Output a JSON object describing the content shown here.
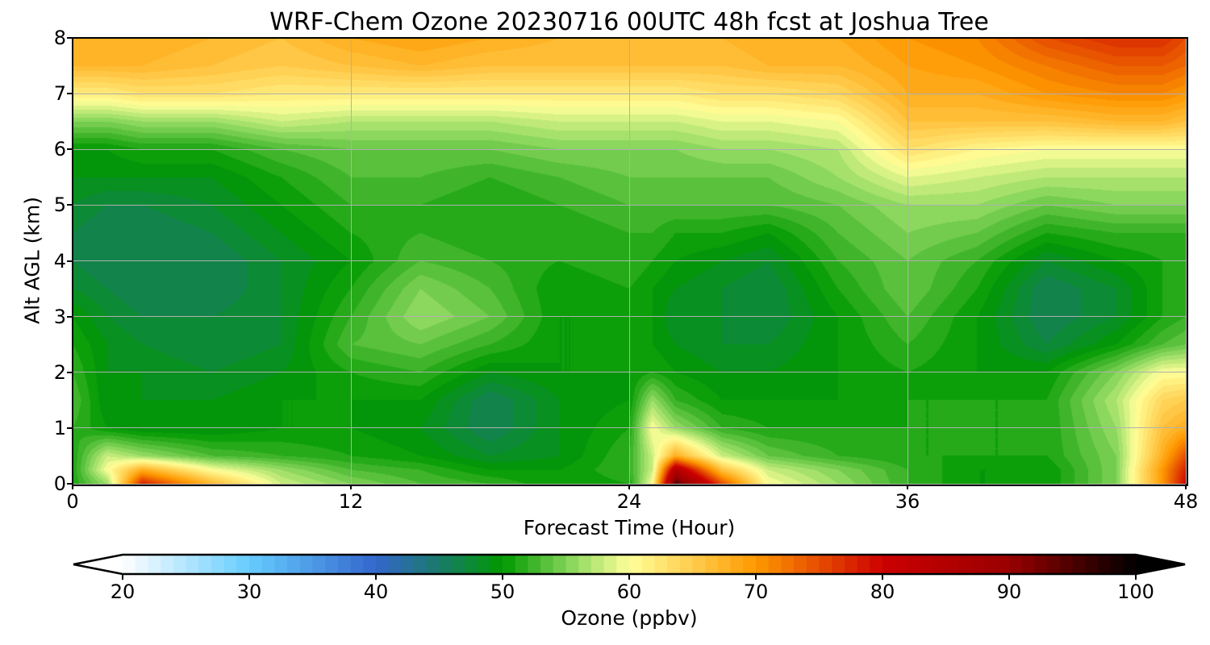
{
  "chart_data": {
    "type": "heatmap",
    "title": "WRF-Chem Ozone  20230716 00UTC 48h fcst at Joshua Tree",
    "xlabel": "Forecast Time (Hour)",
    "ylabel": "Alt AGL (km)",
    "xlim": [
      0,
      48
    ],
    "ylim": [
      0,
      8
    ],
    "xticks": [
      "0",
      "12",
      "24",
      "36",
      "48"
    ],
    "yticks": [
      "0",
      "1",
      "2",
      "3",
      "4",
      "5",
      "6",
      "7",
      "8"
    ],
    "grid": true,
    "x": [
      0,
      1.5,
      3,
      6,
      9,
      12,
      15,
      18,
      21,
      24,
      25,
      26,
      28,
      30,
      33,
      36,
      39,
      42,
      45,
      47,
      48
    ],
    "y": [
      0,
      0.25,
      0.5,
      1,
      1.5,
      2,
      2.5,
      3,
      3.5,
      4,
      4.5,
      5,
      5.5,
      6,
      6.5,
      7,
      7.5,
      8
    ],
    "z_by_x": [
      [
        51,
        51,
        51,
        52,
        53,
        52,
        51,
        50,
        48,
        47,
        47,
        48,
        49,
        50,
        55,
        62,
        67,
        68
      ],
      [
        56,
        60,
        58,
        50,
        49,
        49,
        49,
        48,
        47,
        46,
        46,
        47,
        49,
        50,
        55,
        62,
        67,
        68
      ],
      [
        78,
        68,
        56,
        49,
        49,
        49,
        48,
        47,
        46,
        46,
        46,
        47,
        49,
        51,
        56,
        63,
        67,
        68
      ],
      [
        67,
        60,
        53,
        49,
        49,
        48,
        47,
        47,
        46,
        46,
        47,
        48,
        49,
        51,
        56,
        63,
        66,
        67
      ],
      [
        58,
        56,
        52,
        50,
        50,
        49,
        48,
        48,
        48,
        48,
        49,
        50,
        51,
        53,
        58,
        62,
        65,
        66
      ],
      [
        55,
        53,
        51,
        50,
        50,
        51,
        53,
        52,
        51,
        50,
        51,
        52,
        53,
        54,
        57,
        62,
        66,
        68
      ],
      [
        53,
        52,
        50,
        49,
        50,
        52,
        54,
        56,
        55,
        53,
        52,
        52,
        53,
        54,
        57,
        62,
        67,
        69
      ],
      [
        52,
        50,
        48,
        46,
        46,
        49,
        52,
        54,
        53,
        52,
        51,
        51,
        52,
        54,
        57,
        62,
        66,
        68
      ],
      [
        50,
        50,
        49,
        49,
        49,
        50,
        50,
        50,
        50,
        51,
        51,
        52,
        53,
        55,
        58,
        62,
        66,
        67
      ],
      [
        51,
        52,
        52,
        51,
        50,
        50,
        50,
        50,
        51,
        52,
        52,
        53,
        54,
        55,
        58,
        62,
        66,
        67
      ],
      [
        60,
        58,
        58,
        60,
        56,
        51,
        50,
        50,
        50,
        51,
        52,
        53,
        54,
        55,
        58,
        62,
        66,
        67
      ],
      [
        95,
        85,
        68,
        56,
        52,
        50,
        49,
        48,
        49,
        50,
        51,
        53,
        54,
        55,
        58,
        62,
        66,
        67
      ],
      [
        75,
        66,
        58,
        52,
        50,
        49,
        48,
        48,
        48,
        49,
        51,
        53,
        54,
        56,
        59,
        63,
        66,
        67
      ],
      [
        60,
        58,
        54,
        51,
        50,
        49,
        48,
        47,
        47,
        48,
        50,
        53,
        54,
        56,
        59,
        63,
        67,
        68
      ],
      [
        56,
        55,
        52,
        51,
        50,
        50,
        50,
        50,
        51,
        52,
        53,
        54,
        56,
        57,
        60,
        64,
        67,
        68
      ],
      [
        52,
        52,
        51,
        51,
        51,
        51,
        52,
        53,
        54,
        54,
        55,
        56,
        59,
        63,
        66,
        68,
        69,
        70
      ],
      [
        50,
        50,
        51,
        51,
        51,
        50,
        50,
        50,
        51,
        52,
        54,
        56,
        58,
        61,
        66,
        68,
        70,
        71
      ],
      [
        50,
        50,
        51,
        51,
        51,
        50,
        47,
        46,
        46,
        48,
        51,
        54,
        57,
        60,
        66,
        70,
        72,
        75
      ],
      [
        55,
        55,
        55,
        56,
        57,
        55,
        50,
        48,
        48,
        50,
        52,
        55,
        57,
        60,
        67,
        71,
        74,
        77
      ],
      [
        70,
        70,
        68,
        66,
        64,
        60,
        53,
        51,
        51,
        51,
        52,
        55,
        57,
        60,
        67,
        71,
        74,
        77
      ],
      [
        80,
        78,
        75,
        68,
        65,
        60,
        54,
        52,
        52,
        51,
        52,
        55,
        57,
        60,
        66,
        70,
        73,
        75
      ]
    ],
    "colorbar": {
      "label": "Ozone  (ppbv)",
      "range": [
        20,
        100
      ],
      "level_step": 1,
      "extend": "both",
      "ticks": [
        "20",
        "30",
        "40",
        "50",
        "60",
        "70",
        "80",
        "90",
        "100"
      ],
      "color_anchors": [
        {
          "v": 20,
          "c": "#ffffff"
        },
        {
          "v": 30,
          "c": "#66ccff"
        },
        {
          "v": 40,
          "c": "#3366cc"
        },
        {
          "v": 45,
          "c": "#1a7a6a"
        },
        {
          "v": 50,
          "c": "#009900"
        },
        {
          "v": 56,
          "c": "#99dd66"
        },
        {
          "v": 60,
          "c": "#ffff99"
        },
        {
          "v": 70,
          "c": "#ff9900"
        },
        {
          "v": 80,
          "c": "#cc0000"
        },
        {
          "v": 90,
          "c": "#990000"
        },
        {
          "v": 100,
          "c": "#000000"
        }
      ]
    }
  }
}
